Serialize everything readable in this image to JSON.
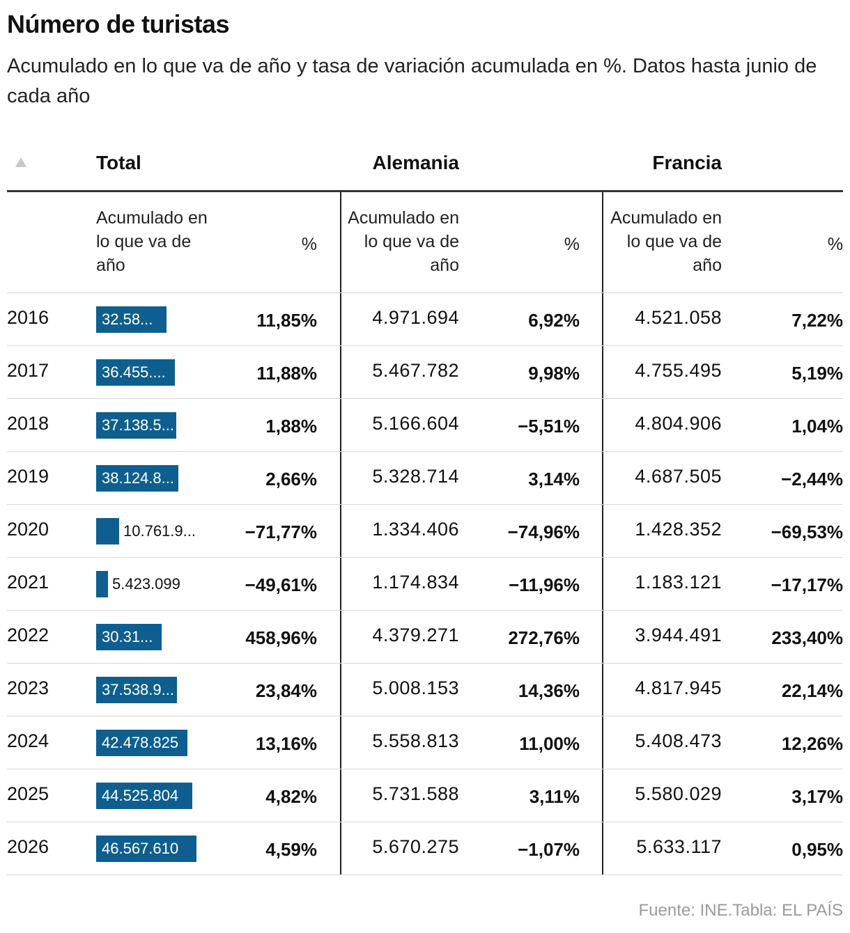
{
  "title": "Número de turistas",
  "subtitle": "Acumulado en lo que va de año y tasa de variación acumulada en %. Datos hasta junio de cada año",
  "source": "Fuente: INE.Tabla: EL PAÍS",
  "colors": {
    "bar": "#0e5f8f",
    "bar_text": "#ffffff"
  },
  "icons": {
    "sort": "triangle-up-icon"
  },
  "groups": {
    "total": "Total",
    "alemania": "Alemania",
    "francia": "Francia"
  },
  "subheaders": {
    "total_acc": "Acumulado en lo que va de año",
    "total_pct": "%",
    "alemania_acc": "Acumulado en lo que va de año",
    "alemania_pct": "%",
    "francia_acc": "Acumulado en lo que va de año",
    "francia_pct": "%"
  },
  "chart_data": {
    "type": "table",
    "title": "Número de turistas",
    "subtitle": "Acumulado en lo que va de año y tasa de variación acumulada en %. Datos hasta junio de cada año",
    "columns": [
      "Total",
      "Alemania",
      "Francia"
    ],
    "total_bar_max": 46567610,
    "rows": [
      {
        "year": "2016",
        "total_value": 32580000,
        "total_label": "32.58...",
        "total_pct": "11,85%",
        "alemania": "4.971.694",
        "alemania_pct": "6,92%",
        "francia": "4.521.058",
        "francia_pct": "7,22%"
      },
      {
        "year": "2017",
        "total_value": 36455000,
        "total_label": "36.455....",
        "total_pct": "11,88%",
        "alemania": "5.467.782",
        "alemania_pct": "9,98%",
        "francia": "4.755.495",
        "francia_pct": "5,19%"
      },
      {
        "year": "2018",
        "total_value": 37138500,
        "total_label": "37.138.5...",
        "total_pct": "1,88%",
        "alemania": "5.166.604",
        "alemania_pct": "−5,51%",
        "francia": "4.804.906",
        "francia_pct": "1,04%"
      },
      {
        "year": "2019",
        "total_value": 38124800,
        "total_label": "38.124.8...",
        "total_pct": "2,66%",
        "alemania": "5.328.714",
        "alemania_pct": "3,14%",
        "francia": "4.687.505",
        "francia_pct": "−2,44%"
      },
      {
        "year": "2020",
        "total_value": 10761900,
        "total_label": "10.761.9...",
        "total_pct": "−71,77%",
        "alemania": "1.334.406",
        "alemania_pct": "−74,96%",
        "francia": "1.428.352",
        "francia_pct": "−69,53%"
      },
      {
        "year": "2021",
        "total_value": 5423099,
        "total_label": "5.423.099",
        "total_pct": "−49,61%",
        "alemania": "1.174.834",
        "alemania_pct": "−11,96%",
        "francia": "1.183.121",
        "francia_pct": "−17,17%"
      },
      {
        "year": "2022",
        "total_value": 30310000,
        "total_label": "30.31...",
        "total_pct": "458,96%",
        "alemania": "4.379.271",
        "alemania_pct": "272,76%",
        "francia": "3.944.491",
        "francia_pct": "233,40%"
      },
      {
        "year": "2023",
        "total_value": 37538900,
        "total_label": "37.538.9...",
        "total_pct": "23,84%",
        "alemania": "5.008.153",
        "alemania_pct": "14,36%",
        "francia": "4.817.945",
        "francia_pct": "22,14%"
      },
      {
        "year": "2024",
        "total_value": 42478825,
        "total_label": "42.478.825",
        "total_pct": "13,16%",
        "alemania": "5.558.813",
        "alemania_pct": "11,00%",
        "francia": "5.408.473",
        "francia_pct": "12,26%"
      },
      {
        "year": "2025",
        "total_value": 44525804,
        "total_label": "44.525.804",
        "total_pct": "4,82%",
        "alemania": "5.731.588",
        "alemania_pct": "3,11%",
        "francia": "5.580.029",
        "francia_pct": "3,17%"
      },
      {
        "year": "2026",
        "total_value": 46567610,
        "total_label": "46.567.610",
        "total_pct": "4,59%",
        "alemania": "5.670.275",
        "alemania_pct": "−1,07%",
        "francia": "5.633.117",
        "francia_pct": "0,95%"
      }
    ]
  }
}
